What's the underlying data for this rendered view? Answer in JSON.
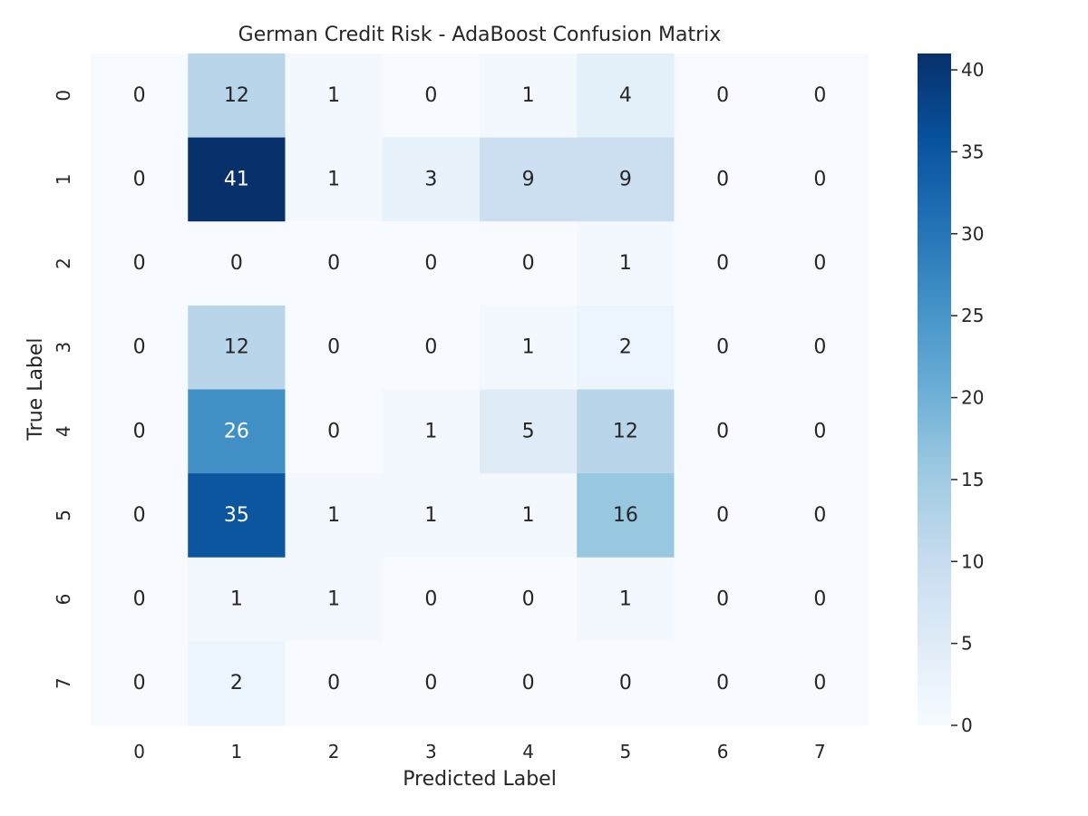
{
  "chart_data": {
    "type": "heatmap",
    "title": "German Credit Risk - AdaBoost Confusion Matrix",
    "xlabel": "Predicted Label",
    "ylabel": "True Label",
    "x_categories": [
      "0",
      "1",
      "2",
      "3",
      "4",
      "5",
      "6",
      "7"
    ],
    "y_categories": [
      "0",
      "1",
      "2",
      "3",
      "4",
      "5",
      "6",
      "7"
    ],
    "values": [
      [
        0,
        12,
        1,
        0,
        1,
        4,
        0,
        0
      ],
      [
        0,
        41,
        1,
        3,
        9,
        9,
        0,
        0
      ],
      [
        0,
        0,
        0,
        0,
        0,
        1,
        0,
        0
      ],
      [
        0,
        12,
        0,
        0,
        1,
        2,
        0,
        0
      ],
      [
        0,
        26,
        0,
        1,
        5,
        12,
        0,
        0
      ],
      [
        0,
        35,
        1,
        1,
        1,
        16,
        0,
        0
      ],
      [
        0,
        1,
        1,
        0,
        0,
        1,
        0,
        0
      ],
      [
        0,
        2,
        0,
        0,
        0,
        0,
        0,
        0
      ]
    ],
    "colormap": "Blues",
    "vmin": 0,
    "vmax": 41,
    "colorbar_ticks": [
      0,
      5,
      10,
      15,
      20,
      25,
      30,
      35,
      40
    ],
    "annotated": true,
    "grid": false
  }
}
